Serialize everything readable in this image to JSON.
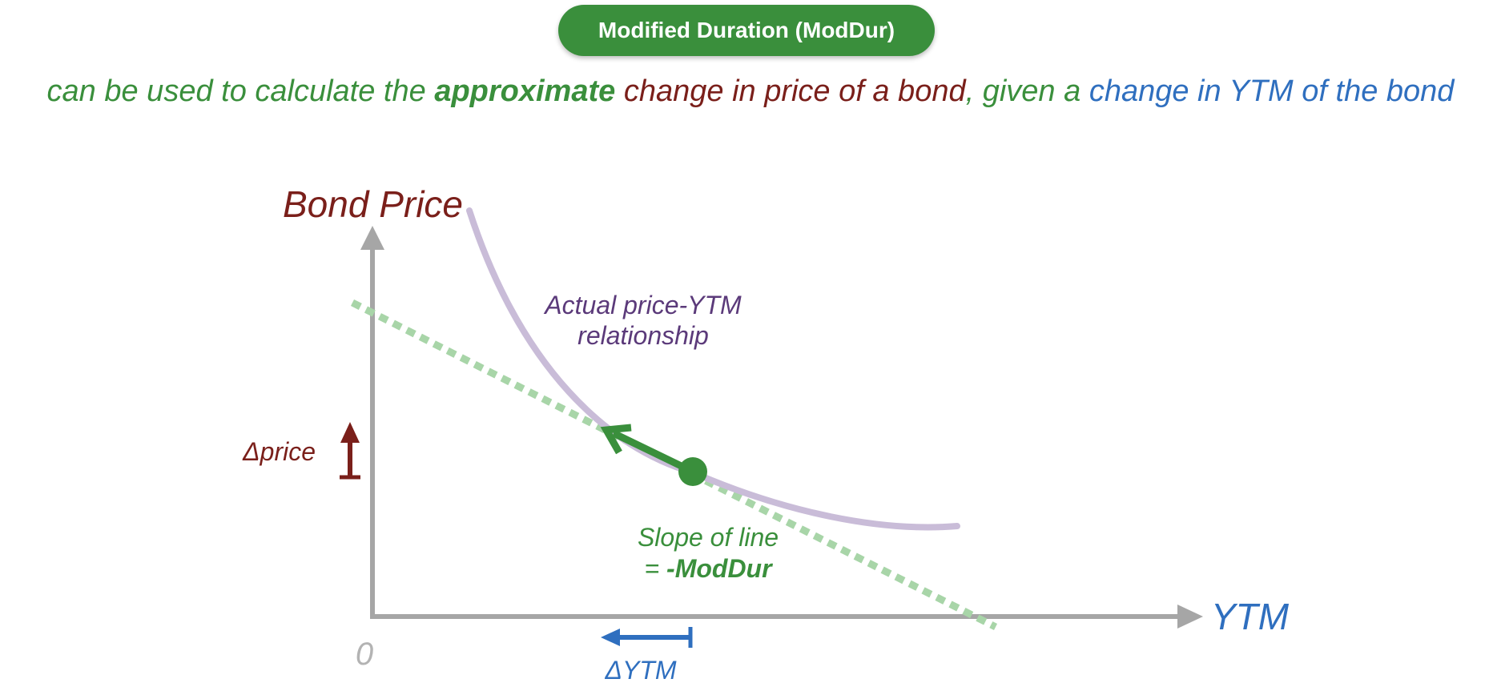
{
  "title": {
    "label": "Modified Duration (ModDur)"
  },
  "subtitle": {
    "part1": "can be used to calculate the ",
    "part2": "approximate",
    "part3": " change in price of a bond",
    "part4": ", given a ",
    "part5": "change in YTM of the bond"
  },
  "diagram": {
    "y_axis_label": "Bond Price",
    "x_axis_label": "YTM",
    "origin_label": "0",
    "curve_label_line1": "Actual price-YTM",
    "curve_label_line2": "relationship",
    "slope_label_line1": "Slope of line",
    "slope_label_prefix": "= ",
    "slope_label_value": "-ModDur",
    "delta_price_label": "Δprice",
    "delta_ytm_label": "ΔYTM"
  },
  "colors": {
    "green": "#3a8f3c",
    "light_green_dotted": "#a8d5a8",
    "dark_red": "#7a1f1a",
    "blue": "#2f6fbf",
    "purple_curve": "#c9bcd8",
    "purple_text": "#5b3a7a",
    "axis_gray": "#a6a6a6"
  }
}
